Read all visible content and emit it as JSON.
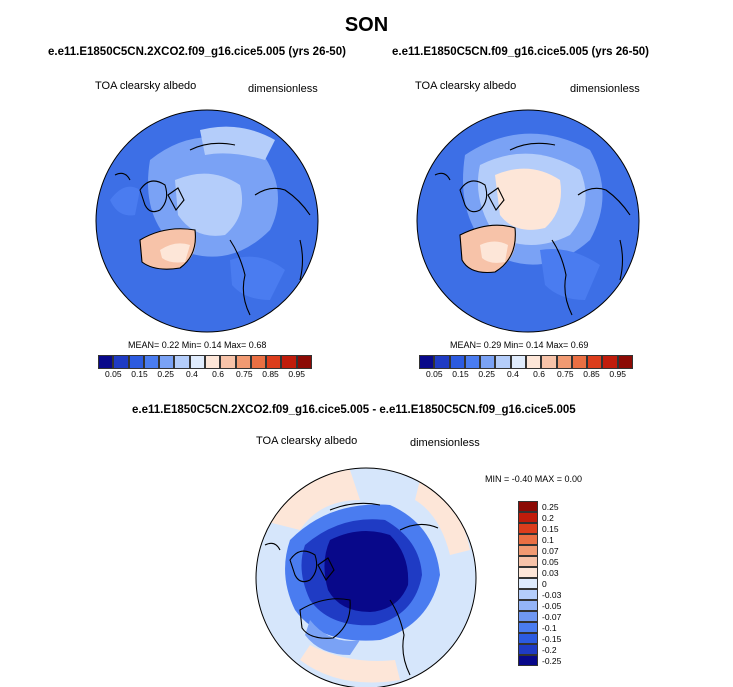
{
  "figure": {
    "season": "SON",
    "panel_left": {
      "case": "e.e11.E1850C5CN.2XCO2.f09_g16.cice5.005 (yrs 26-50)",
      "variable": "TOA clearsky albedo",
      "units": "dimensionless",
      "stats": "MEAN=  0.22  Min=  0.14  Max=  0.68"
    },
    "panel_right": {
      "case": "e.e11.E1850C5CN.f09_g16.cice5.005 (yrs 26-50)",
      "variable": "TOA clearsky albedo",
      "units": "dimensionless",
      "stats": "MEAN=  0.29  Min=  0.14  Max=  0.69"
    },
    "panel_diff": {
      "case": "e.e11.E1850C5CN.2XCO2.f09_g16.cice5.005 - e.e11.E1850C5CN.f09_g16.cice5.005",
      "variable": "TOA clearsky albedo",
      "units": "dimensionless",
      "stats": "MIN =  -0.40 MAX =   0.00"
    },
    "abs_colorbar": {
      "colors": [
        "#08088a",
        "#1f3bc4",
        "#2c5be0",
        "#4a7cf0",
        "#7aa2f5",
        "#b4cdfa",
        "#e0ecfd",
        "#fde6d8",
        "#f7c3a9",
        "#f19a72",
        "#ea6f43",
        "#dc3d1c",
        "#c01c0b",
        "#8c0a05"
      ],
      "labels": [
        "0.05",
        "0.15",
        "0.25",
        "0.4",
        "0.6",
        "0.75",
        "0.85",
        "0.95"
      ]
    },
    "diff_colorbar": {
      "colors": [
        "#8c0a05",
        "#c01c0b",
        "#dc3d1c",
        "#ea6f43",
        "#f19a72",
        "#f7c3a9",
        "#fde6d8",
        "#ddeafd",
        "#b4cdfa",
        "#94b4f7",
        "#6f97f2",
        "#4a7cf0",
        "#2c5be0",
        "#1f3bc4",
        "#08088a"
      ],
      "labels": [
        "0.25",
        "0.2",
        "0.15",
        "0.1",
        "0.07",
        "0.05",
        "0.03",
        "0",
        "-0.03",
        "-0.05",
        "-0.07",
        "-0.1",
        "-0.15",
        "-0.2",
        "-0.25"
      ]
    },
    "map_colors": {
      "ocean_left": "#3d6fe6",
      "ocean_right": "#3d6fe6",
      "diff_bg": "#d6e6fb",
      "diff_core": "#08088a"
    }
  }
}
